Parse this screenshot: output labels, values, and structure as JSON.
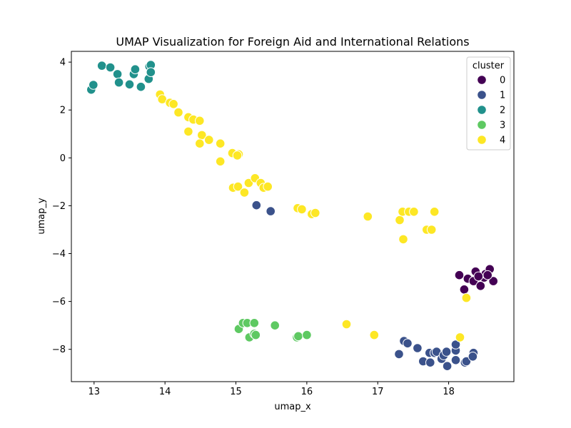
{
  "chart_data": {
    "type": "scatter",
    "title": "UMAP Visualization for Foreign Aid and International Relations",
    "xlabel": "umap_x",
    "ylabel": "umap_y",
    "xlim": [
      12.68,
      18.92
    ],
    "ylim": [
      -9.35,
      4.45
    ],
    "xticks": [
      13,
      14,
      15,
      16,
      17,
      18
    ],
    "yticks": [
      4,
      2,
      0,
      -2,
      -4,
      -6,
      -8
    ],
    "ytick_labels": [
      "4",
      "2",
      "0",
      "−2",
      "−4",
      "−6",
      "−8"
    ],
    "grid": false,
    "legend": {
      "title": "cluster",
      "placement": "top-right"
    },
    "series": [
      {
        "name": "0",
        "color": "#440154",
        "points": [
          [
            18.15,
            -4.9
          ],
          [
            18.27,
            -5.05
          ],
          [
            18.35,
            -5.15
          ],
          [
            18.38,
            -4.75
          ],
          [
            18.45,
            -5.35
          ],
          [
            18.5,
            -5.0
          ],
          [
            18.52,
            -4.85
          ],
          [
            18.58,
            -4.65
          ],
          [
            18.63,
            -5.15
          ],
          [
            18.22,
            -5.5
          ],
          [
            18.42,
            -4.95
          ],
          [
            18.55,
            -4.9
          ]
        ]
      },
      {
        "name": "1",
        "color": "#3b528b",
        "points": [
          [
            15.29,
            -1.98
          ],
          [
            15.49,
            -2.23
          ],
          [
            17.3,
            -8.2
          ],
          [
            17.37,
            -7.65
          ],
          [
            17.42,
            -7.75
          ],
          [
            17.56,
            -7.95
          ],
          [
            17.64,
            -8.5
          ],
          [
            17.73,
            -8.15
          ],
          [
            17.74,
            -8.55
          ],
          [
            17.8,
            -8.15
          ],
          [
            17.83,
            -8.1
          ],
          [
            17.9,
            -8.4
          ],
          [
            17.93,
            -8.25
          ],
          [
            17.97,
            -8.1
          ],
          [
            17.98,
            -8.7
          ],
          [
            18.1,
            -8.45
          ],
          [
            18.1,
            -8.05
          ],
          [
            18.1,
            -7.8
          ],
          [
            18.23,
            -8.55
          ],
          [
            18.25,
            -8.5
          ],
          [
            18.35,
            -8.15
          ],
          [
            18.34,
            -8.3
          ]
        ]
      },
      {
        "name": "2",
        "color": "#21918c",
        "points": [
          [
            12.96,
            2.85
          ],
          [
            12.99,
            3.05
          ],
          [
            13.11,
            3.85
          ],
          [
            13.23,
            3.78
          ],
          [
            13.33,
            3.5
          ],
          [
            13.35,
            3.15
          ],
          [
            13.5,
            3.07
          ],
          [
            13.56,
            3.5
          ],
          [
            13.58,
            3.7
          ],
          [
            13.66,
            2.97
          ],
          [
            13.77,
            3.3
          ],
          [
            13.78,
            3.82
          ],
          [
            13.8,
            3.88
          ],
          [
            13.8,
            3.58
          ]
        ]
      },
      {
        "name": "3",
        "color": "#5ec962",
        "points": [
          [
            15.04,
            -7.15
          ],
          [
            15.1,
            -6.9
          ],
          [
            15.16,
            -6.9
          ],
          [
            15.19,
            -7.5
          ],
          [
            15.26,
            -6.9
          ],
          [
            15.26,
            -7.35
          ],
          [
            15.28,
            -7.4
          ],
          [
            15.55,
            -7.0
          ],
          [
            15.86,
            -7.5
          ],
          [
            15.88,
            -7.45
          ],
          [
            16.0,
            -7.4
          ]
        ]
      },
      {
        "name": "4",
        "color": "#fde725",
        "points": [
          [
            13.93,
            2.65
          ],
          [
            13.96,
            2.45
          ],
          [
            14.07,
            2.3
          ],
          [
            14.12,
            2.25
          ],
          [
            14.19,
            1.9
          ],
          [
            14.33,
            1.7
          ],
          [
            14.33,
            1.1
          ],
          [
            14.4,
            1.6
          ],
          [
            14.49,
            1.55
          ],
          [
            14.52,
            0.95
          ],
          [
            14.49,
            0.6
          ],
          [
            14.62,
            0.75
          ],
          [
            14.78,
            0.6
          ],
          [
            14.78,
            -0.15
          ],
          [
            14.95,
            0.2
          ],
          [
            15.04,
            0.15
          ],
          [
            15.02,
            0.1
          ],
          [
            14.96,
            -1.25
          ],
          [
            15.03,
            -1.2
          ],
          [
            15.12,
            -1.45
          ],
          [
            15.18,
            -1.05
          ],
          [
            15.27,
            -0.85
          ],
          [
            15.35,
            -1.05
          ],
          [
            15.39,
            -1.25
          ],
          [
            15.45,
            -1.2
          ],
          [
            15.87,
            -2.1
          ],
          [
            15.93,
            -2.15
          ],
          [
            16.07,
            -2.35
          ],
          [
            16.12,
            -2.3
          ],
          [
            16.86,
            -2.45
          ],
          [
            17.31,
            -2.6
          ],
          [
            17.35,
            -2.25
          ],
          [
            17.36,
            -3.4
          ],
          [
            17.44,
            -2.25
          ],
          [
            17.51,
            -2.25
          ],
          [
            17.8,
            -2.25
          ],
          [
            17.69,
            -3.0
          ],
          [
            17.76,
            -3.0
          ],
          [
            18.16,
            -7.5
          ],
          [
            18.25,
            -5.85
          ],
          [
            16.56,
            -6.95
          ],
          [
            16.95,
            -7.4
          ]
        ]
      }
    ]
  }
}
